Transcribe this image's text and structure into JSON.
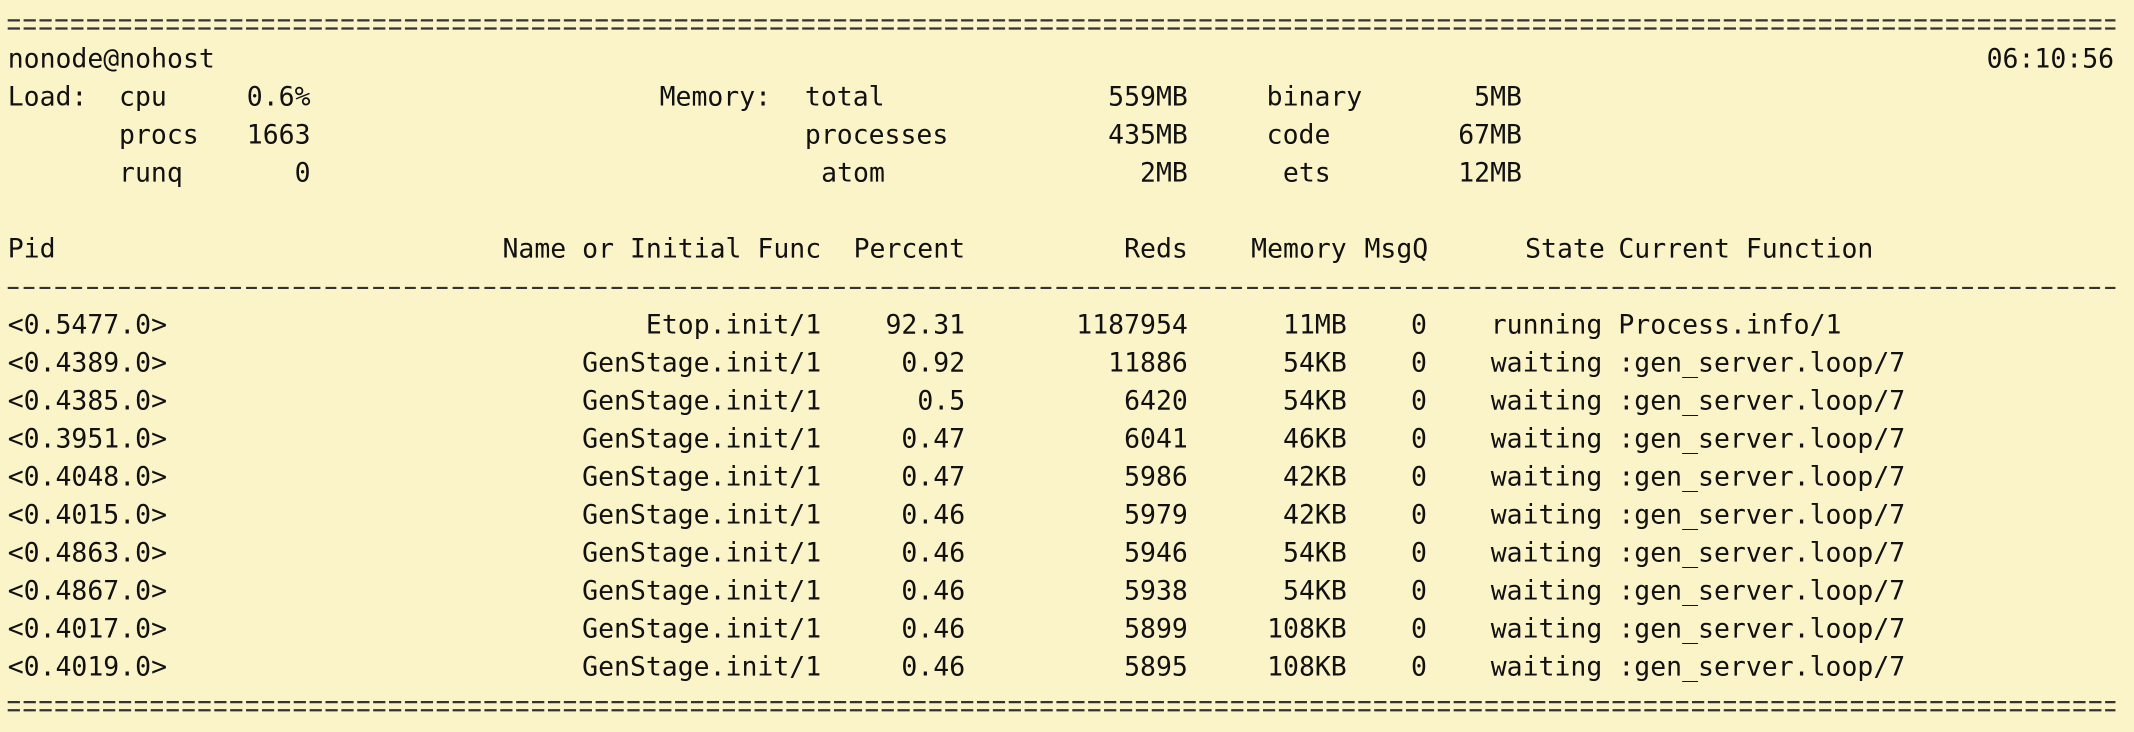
{
  "header": {
    "node": "nonode@nohost",
    "time": "06:10:56"
  },
  "load": {
    "label": "Load:",
    "items": [
      {
        "name": "cpu",
        "value": "0.6%"
      },
      {
        "name": "procs",
        "value": "1663"
      },
      {
        "name": "runq",
        "value": "0"
      }
    ]
  },
  "memory": {
    "label": "Memory:",
    "left": [
      {
        "name": "total",
        "value": "559MB"
      },
      {
        "name": "processes",
        "value": "435MB"
      },
      {
        "name": "atom",
        "value": "2MB"
      }
    ],
    "right": [
      {
        "name": "binary",
        "value": "5MB"
      },
      {
        "name": "code",
        "value": "67MB"
      },
      {
        "name": "ets",
        "value": "12MB"
      }
    ]
  },
  "table": {
    "columns": [
      "Pid",
      "Name or Initial Func",
      "Percent",
      "Reds",
      "Memory",
      "MsgQ",
      "State",
      "Current Function"
    ],
    "rows": [
      [
        "<0.5477.0>",
        "Etop.init/1",
        "92.31",
        "1187954",
        "11MB",
        "0",
        "running",
        "Process.info/1"
      ],
      [
        "<0.4389.0>",
        "GenStage.init/1",
        "0.92",
        "11886",
        "54KB",
        "0",
        "waiting",
        ":gen_server.loop/7"
      ],
      [
        "<0.4385.0>",
        "GenStage.init/1",
        "0.5",
        "6420",
        "54KB",
        "0",
        "waiting",
        ":gen_server.loop/7"
      ],
      [
        "<0.3951.0>",
        "GenStage.init/1",
        "0.47",
        "6041",
        "46KB",
        "0",
        "waiting",
        ":gen_server.loop/7"
      ],
      [
        "<0.4048.0>",
        "GenStage.init/1",
        "0.47",
        "5986",
        "42KB",
        "0",
        "waiting",
        ":gen_server.loop/7"
      ],
      [
        "<0.4015.0>",
        "GenStage.init/1",
        "0.46",
        "5979",
        "42KB",
        "0",
        "waiting",
        ":gen_server.loop/7"
      ],
      [
        "<0.4863.0>",
        "GenStage.init/1",
        "0.46",
        "5946",
        "54KB",
        "0",
        "waiting",
        ":gen_server.loop/7"
      ],
      [
        "<0.4867.0>",
        "GenStage.init/1",
        "0.46",
        "5938",
        "54KB",
        "0",
        "waiting",
        ":gen_server.loop/7"
      ],
      [
        "<0.4017.0>",
        "GenStage.init/1",
        "0.46",
        "5899",
        "108KB",
        "0",
        "waiting",
        ":gen_server.loop/7"
      ],
      [
        "<0.4019.0>",
        "GenStage.init/1",
        "0.46",
        "5895",
        "108KB",
        "0",
        "waiting",
        ":gen_server.loop/7"
      ]
    ]
  }
}
